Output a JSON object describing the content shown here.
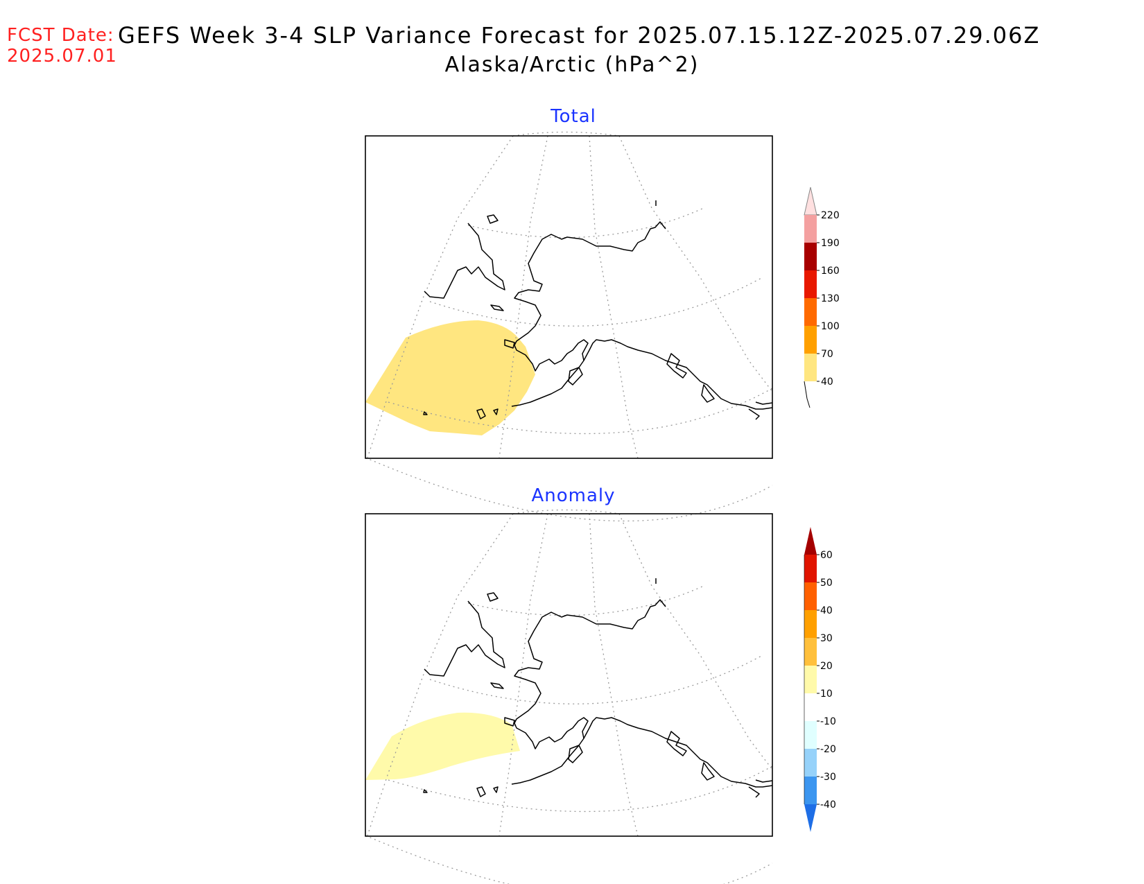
{
  "header": {
    "fcst_label": "FCST Date:",
    "fcst_date": "2025.07.01",
    "title": "GEFS Week 3-4 SLP Variance Forecast for 2025.07.15.12Z-2025.07.29.06Z",
    "subtitle": "Alaska/Arctic (hPa^2)"
  },
  "panels": {
    "total": {
      "title": "Total",
      "colorbar": {
        "levels": [
          "40",
          "70",
          "100",
          "130",
          "160",
          "190",
          "220"
        ],
        "colors": [
          "#ffe680",
          "#ffa000",
          "#ff6a00",
          "#e81800",
          "#a80000",
          "#f4a0a0",
          "#ffe0e0"
        ]
      }
    },
    "anomaly": {
      "title": "Anomaly",
      "colorbar": {
        "levels": [
          "-40",
          "-30",
          "-20",
          "-10",
          "10",
          "20",
          "30",
          "40",
          "50",
          "60"
        ],
        "colors": [
          "#1e6ee6",
          "#3c96f0",
          "#96d2fa",
          "#e0ffff",
          "#ffffff",
          "#fffaaa",
          "#ffc03c",
          "#ffa000",
          "#ff6000",
          "#e11400",
          "#a50000"
        ]
      }
    }
  }
}
